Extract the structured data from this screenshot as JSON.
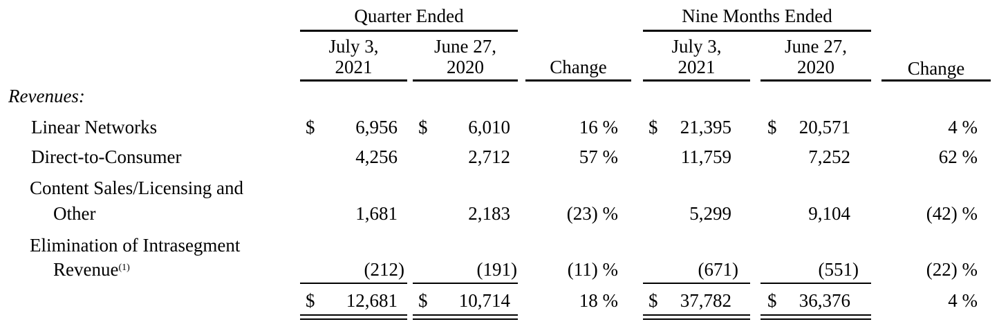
{
  "headers": {
    "quarter_group": "Quarter Ended",
    "nine_group": "Nine Months Ended",
    "q_col1_line1": "July 3,",
    "q_col1_line2": "2021",
    "q_col2_line1": "June 27,",
    "q_col2_line2": "2020",
    "q_change": "Change",
    "n_col1_line1": "July 3,",
    "n_col1_line2": "2021",
    "n_col2_line1": "June 27,",
    "n_col2_line2": "2020",
    "n_change": "Change"
  },
  "section_label": "Revenues:",
  "currency_symbol": "$",
  "rows": [
    {
      "label": "Linear Networks",
      "q2021": "6,956",
      "q2020": "6,010",
      "q_change": "16 %",
      "n2021": "21,395",
      "n2020": "20,571",
      "n_change": "4 %"
    },
    {
      "label": "Direct-to-Consumer",
      "q2021": "4,256",
      "q2020": "2,712",
      "q_change": "57 %",
      "n2021": "11,759",
      "n2020": "7,252",
      "n_change": "62 %"
    },
    {
      "label_line1": "Content Sales/Licensing and",
      "label_line2": "Other",
      "q2021": "1,681",
      "q2020": "2,183",
      "q_change": "(23) %",
      "n2021": "5,299",
      "n2020": "9,104",
      "n_change": "(42) %"
    },
    {
      "label_line1": "Elimination of Intrasegment",
      "label_line2": "Revenue",
      "footnote": "(1)",
      "q2021": "(212)",
      "q2020": "(191)",
      "q_change": "(11) %",
      "n2021": "(671)",
      "n2020": "(551)",
      "n_change": "(22) %"
    }
  ],
  "total": {
    "q2021": "12,681",
    "q2020": "10,714",
    "q_change": "18 %",
    "n2021": "37,782",
    "n2020": "36,376",
    "n_change": "4 %"
  }
}
